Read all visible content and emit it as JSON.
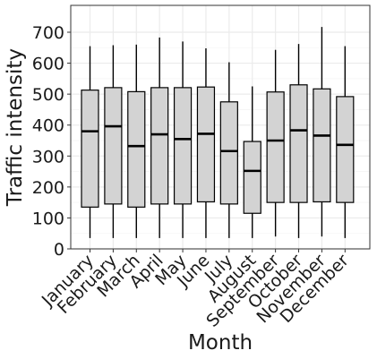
{
  "chart_data": {
    "type": "boxplot",
    "xlabel": "Month",
    "ylabel": "Traffic intensity",
    "ylim": [
      0,
      750
    ],
    "yticks": [
      0,
      100,
      200,
      300,
      400,
      500,
      600,
      700
    ],
    "grid": true,
    "categories": [
      "January",
      "February",
      "March",
      "April",
      "May",
      "June",
      "July",
      "August",
      "September",
      "October",
      "November",
      "December"
    ],
    "series": [
      {
        "boxes": [
          {
            "min": 35,
            "q1": 135,
            "median": 380,
            "q3": 513,
            "max": 655
          },
          {
            "min": 35,
            "q1": 145,
            "median": 396,
            "q3": 521,
            "max": 658
          },
          {
            "min": 35,
            "q1": 135,
            "median": 332,
            "q3": 508,
            "max": 660
          },
          {
            "min": 35,
            "q1": 145,
            "median": 370,
            "q3": 521,
            "max": 683
          },
          {
            "min": 35,
            "q1": 145,
            "median": 355,
            "q3": 521,
            "max": 670
          },
          {
            "min": 35,
            "q1": 152,
            "median": 372,
            "q3": 523,
            "max": 648
          },
          {
            "min": 35,
            "q1": 145,
            "median": 316,
            "q3": 475,
            "max": 603
          },
          {
            "min": 35,
            "q1": 115,
            "median": 252,
            "q3": 347,
            "max": 525
          },
          {
            "min": 40,
            "q1": 150,
            "median": 350,
            "q3": 507,
            "max": 643
          },
          {
            "min": 35,
            "q1": 150,
            "median": 383,
            "q3": 530,
            "max": 662
          },
          {
            "min": 40,
            "q1": 152,
            "median": 366,
            "q3": 517,
            "max": 717
          },
          {
            "min": 35,
            "q1": 150,
            "median": 336,
            "q3": 492,
            "max": 655
          }
        ]
      }
    ]
  },
  "colors": {
    "box_fill": "#d3d3d3",
    "outline": "#000000",
    "grid_major": "#ebebeb",
    "grid_minor": "#f5f5f5",
    "panel_border": "#333333",
    "text": "#1a1a1a"
  }
}
